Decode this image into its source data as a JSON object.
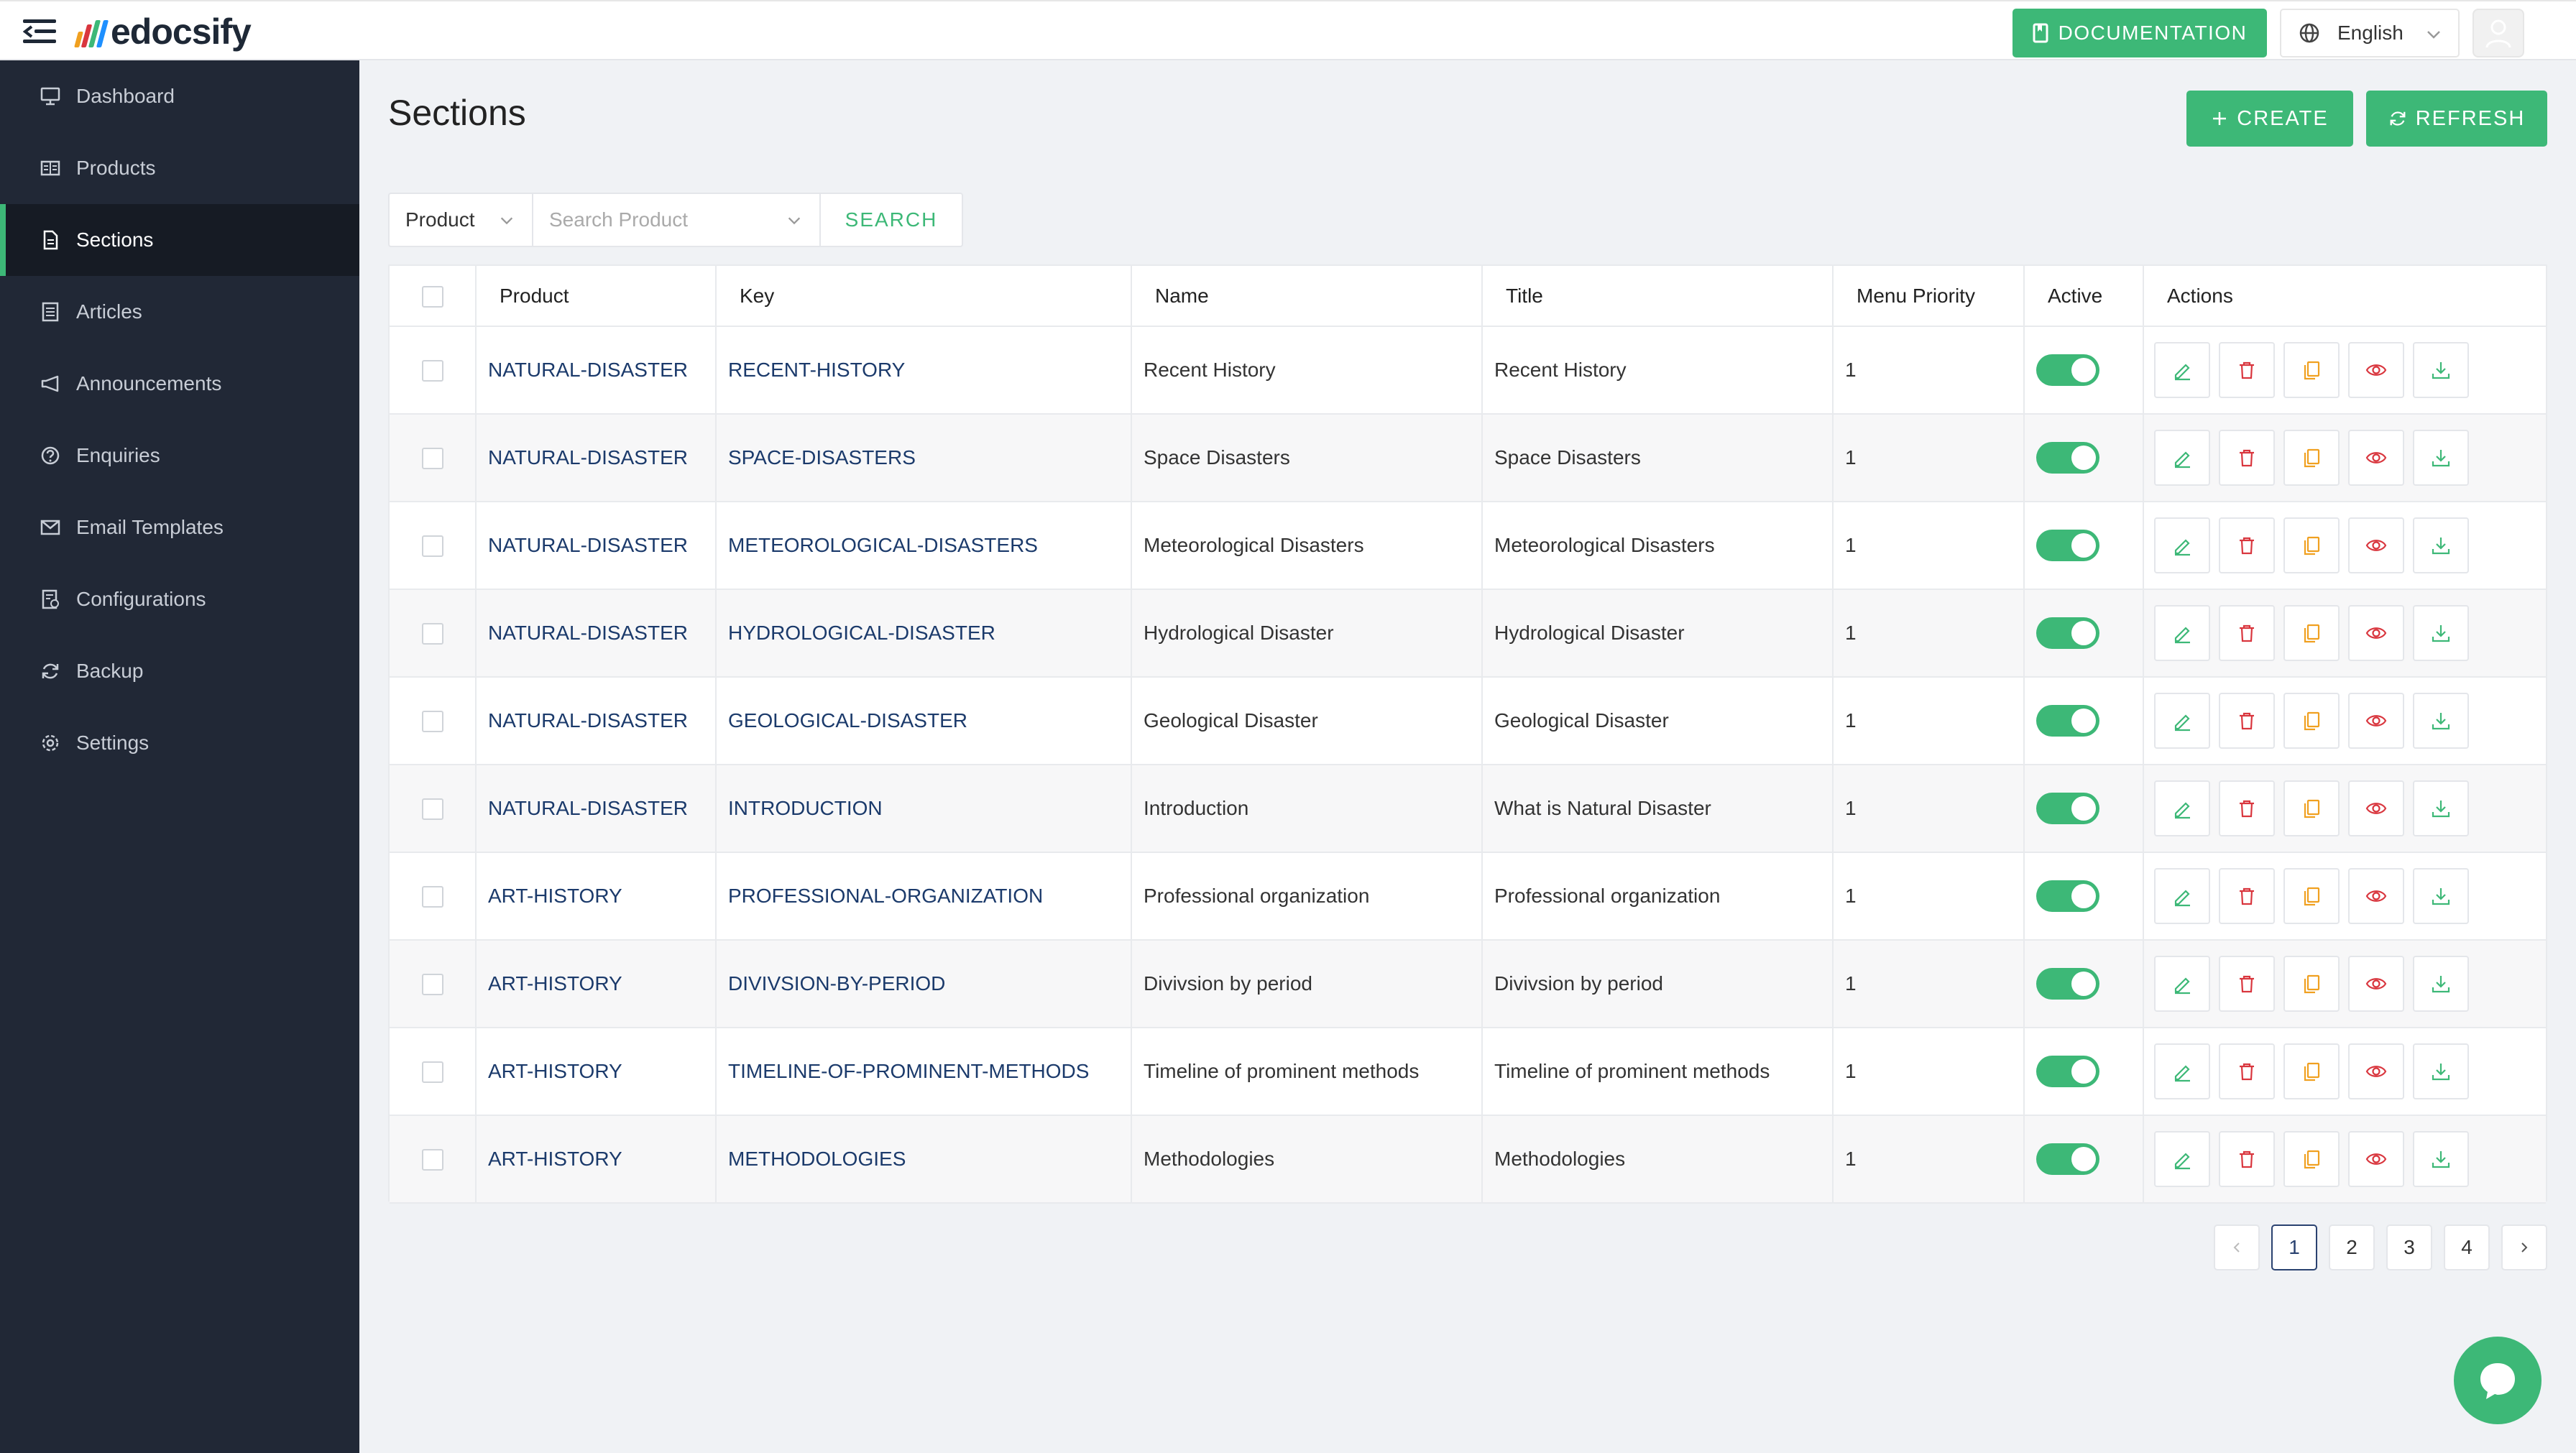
{
  "app": {
    "logo_text": "edocsify"
  },
  "header": {
    "documentation_label": "DOCUMENTATION",
    "language": "English"
  },
  "sidebar": {
    "items": [
      {
        "label": "Dashboard",
        "icon": "monitor-icon"
      },
      {
        "label": "Products",
        "icon": "product-icon"
      },
      {
        "label": "Sections",
        "icon": "file-icon",
        "active": true
      },
      {
        "label": "Articles",
        "icon": "article-icon"
      },
      {
        "label": "Announcements",
        "icon": "megaphone-icon"
      },
      {
        "label": "Enquiries",
        "icon": "question-icon"
      },
      {
        "label": "Email Templates",
        "icon": "mail-icon"
      },
      {
        "label": "Configurations",
        "icon": "config-icon"
      },
      {
        "label": "Backup",
        "icon": "sync-icon"
      },
      {
        "label": "Settings",
        "icon": "gear-icon"
      }
    ]
  },
  "main": {
    "title": "Sections",
    "create_label": "CREATE",
    "refresh_label": "REFRESH",
    "filter": {
      "field": "Product",
      "placeholder": "Search Product",
      "search_label": "SEARCH"
    }
  },
  "table": {
    "columns": [
      "Product",
      "Key",
      "Name",
      "Title",
      "Menu Priority",
      "Active",
      "Actions"
    ],
    "rows": [
      {
        "product": "NATURAL-DISASTER",
        "key": "RECENT-HISTORY",
        "name": "Recent History",
        "title": "Recent History",
        "priority": "1",
        "active": true
      },
      {
        "product": "NATURAL-DISASTER",
        "key": "SPACE-DISASTERS",
        "name": "Space Disasters",
        "title": "Space Disasters",
        "priority": "1",
        "active": true
      },
      {
        "product": "NATURAL-DISASTER",
        "key": "METEOROLOGICAL-DISASTERS",
        "name": "Meteorological Disasters",
        "title": "Meteorological Disasters",
        "priority": "1",
        "active": true
      },
      {
        "product": "NATURAL-DISASTER",
        "key": "HYDROLOGICAL-DISASTER",
        "name": "Hydrological Disaster",
        "title": "Hydrological Disaster",
        "priority": "1",
        "active": true
      },
      {
        "product": "NATURAL-DISASTER",
        "key": "GEOLOGICAL-DISASTER",
        "name": "Geological Disaster",
        "title": "Geological Disaster",
        "priority": "1",
        "active": true
      },
      {
        "product": "NATURAL-DISASTER",
        "key": "INTRODUCTION",
        "name": "Introduction",
        "title": "What is Natural Disaster",
        "priority": "1",
        "active": true
      },
      {
        "product": "ART-HISTORY",
        "key": "PROFESSIONAL-ORGANIZATION",
        "name": "Professional organization",
        "title": "Professional organization",
        "priority": "1",
        "active": true
      },
      {
        "product": "ART-HISTORY",
        "key": "DIVIVSION-BY-PERIOD",
        "name": "Divivsion by period",
        "title": "Divivsion by period",
        "priority": "1",
        "active": true
      },
      {
        "product": "ART-HISTORY",
        "key": "TIMELINE-OF-PROMINENT-METHODS",
        "name": "Timeline of prominent methods",
        "title": "Timeline of prominent methods",
        "priority": "1",
        "active": true
      },
      {
        "product": "ART-HISTORY",
        "key": "METHODOLOGIES",
        "name": "Methodologies",
        "title": "Methodologies",
        "priority": "1",
        "active": true
      }
    ],
    "row_actions": [
      "edit-icon",
      "delete-icon",
      "copy-icon",
      "view-icon",
      "download-icon"
    ]
  },
  "pagination": {
    "pages": [
      "1",
      "2",
      "3",
      "4"
    ],
    "current": "1"
  },
  "colors": {
    "accent": "#3db877",
    "sidebar": "#212836",
    "link": "#1b3a6b",
    "delete": "#d9363e",
    "copy": "#f0a020"
  }
}
